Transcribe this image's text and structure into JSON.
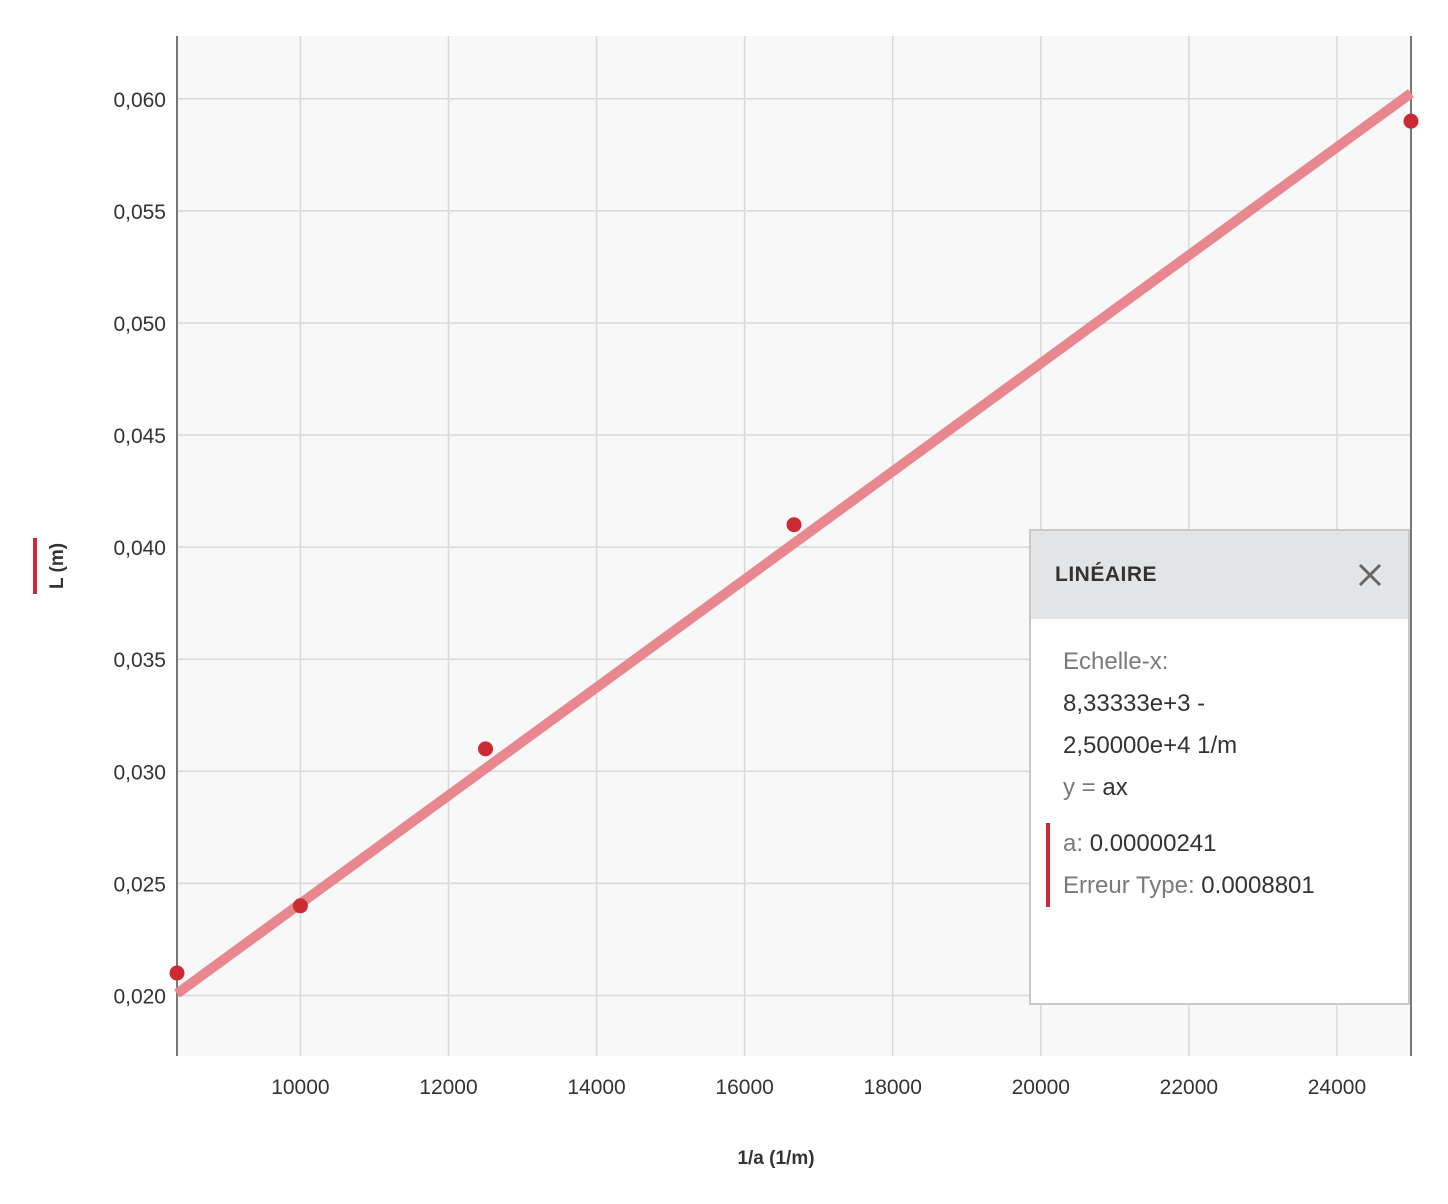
{
  "colors": {
    "background": "#f8f8f8",
    "grid": "#d9d9d9",
    "axis": "#777777",
    "points": "#cc2b36",
    "fit_line": "#e8878e",
    "panel_header": "#e3e4e6"
  },
  "chart_data": {
    "type": "scatter",
    "xlabel": "1/a (1/m)",
    "ylabel": "L (m)",
    "xlim": [
      8333.33,
      25000
    ],
    "ylim": [
      0.0173,
      0.0628
    ],
    "x_ticks": [
      10000,
      12000,
      14000,
      16000,
      18000,
      20000,
      22000,
      24000
    ],
    "x_tick_labels": [
      "10000",
      "12000",
      "14000",
      "16000",
      "18000",
      "20000",
      "22000",
      "24000"
    ],
    "y_ticks": [
      0.02,
      0.025,
      0.03,
      0.035,
      0.04,
      0.045,
      0.05,
      0.055,
      0.06
    ],
    "y_tick_labels": [
      "0,020",
      "0,025",
      "0,030",
      "0,035",
      "0,040",
      "0,045",
      "0,050",
      "0,055",
      "0,060"
    ],
    "grid": true,
    "series": [
      {
        "points": [
          {
            "x": 8333.33,
            "y": 0.021
          },
          {
            "x": 10000,
            "y": 0.024
          },
          {
            "x": 12500,
            "y": 0.031
          },
          {
            "x": 16666.7,
            "y": 0.041
          },
          {
            "x": 25000,
            "y": 0.059
          }
        ]
      }
    ],
    "fit": {
      "model": "y = ax",
      "a": 2.41e-06,
      "x_range": [
        8333.33,
        25000
      ]
    }
  },
  "fit_panel": {
    "title": "LINÉAIRE",
    "close_icon": "close-icon",
    "scale_label": "Echelle-x:",
    "scale_range_start": "8,33333e+3 -",
    "scale_range_end": "2,50000e+4 1/m",
    "equation_lhs": "y =",
    "equation_rhs": "ax",
    "param_a_label": "a:",
    "param_a_value": "0.00000241",
    "std_err_label": "Erreur Type:",
    "std_err_value": "0.0008801"
  }
}
